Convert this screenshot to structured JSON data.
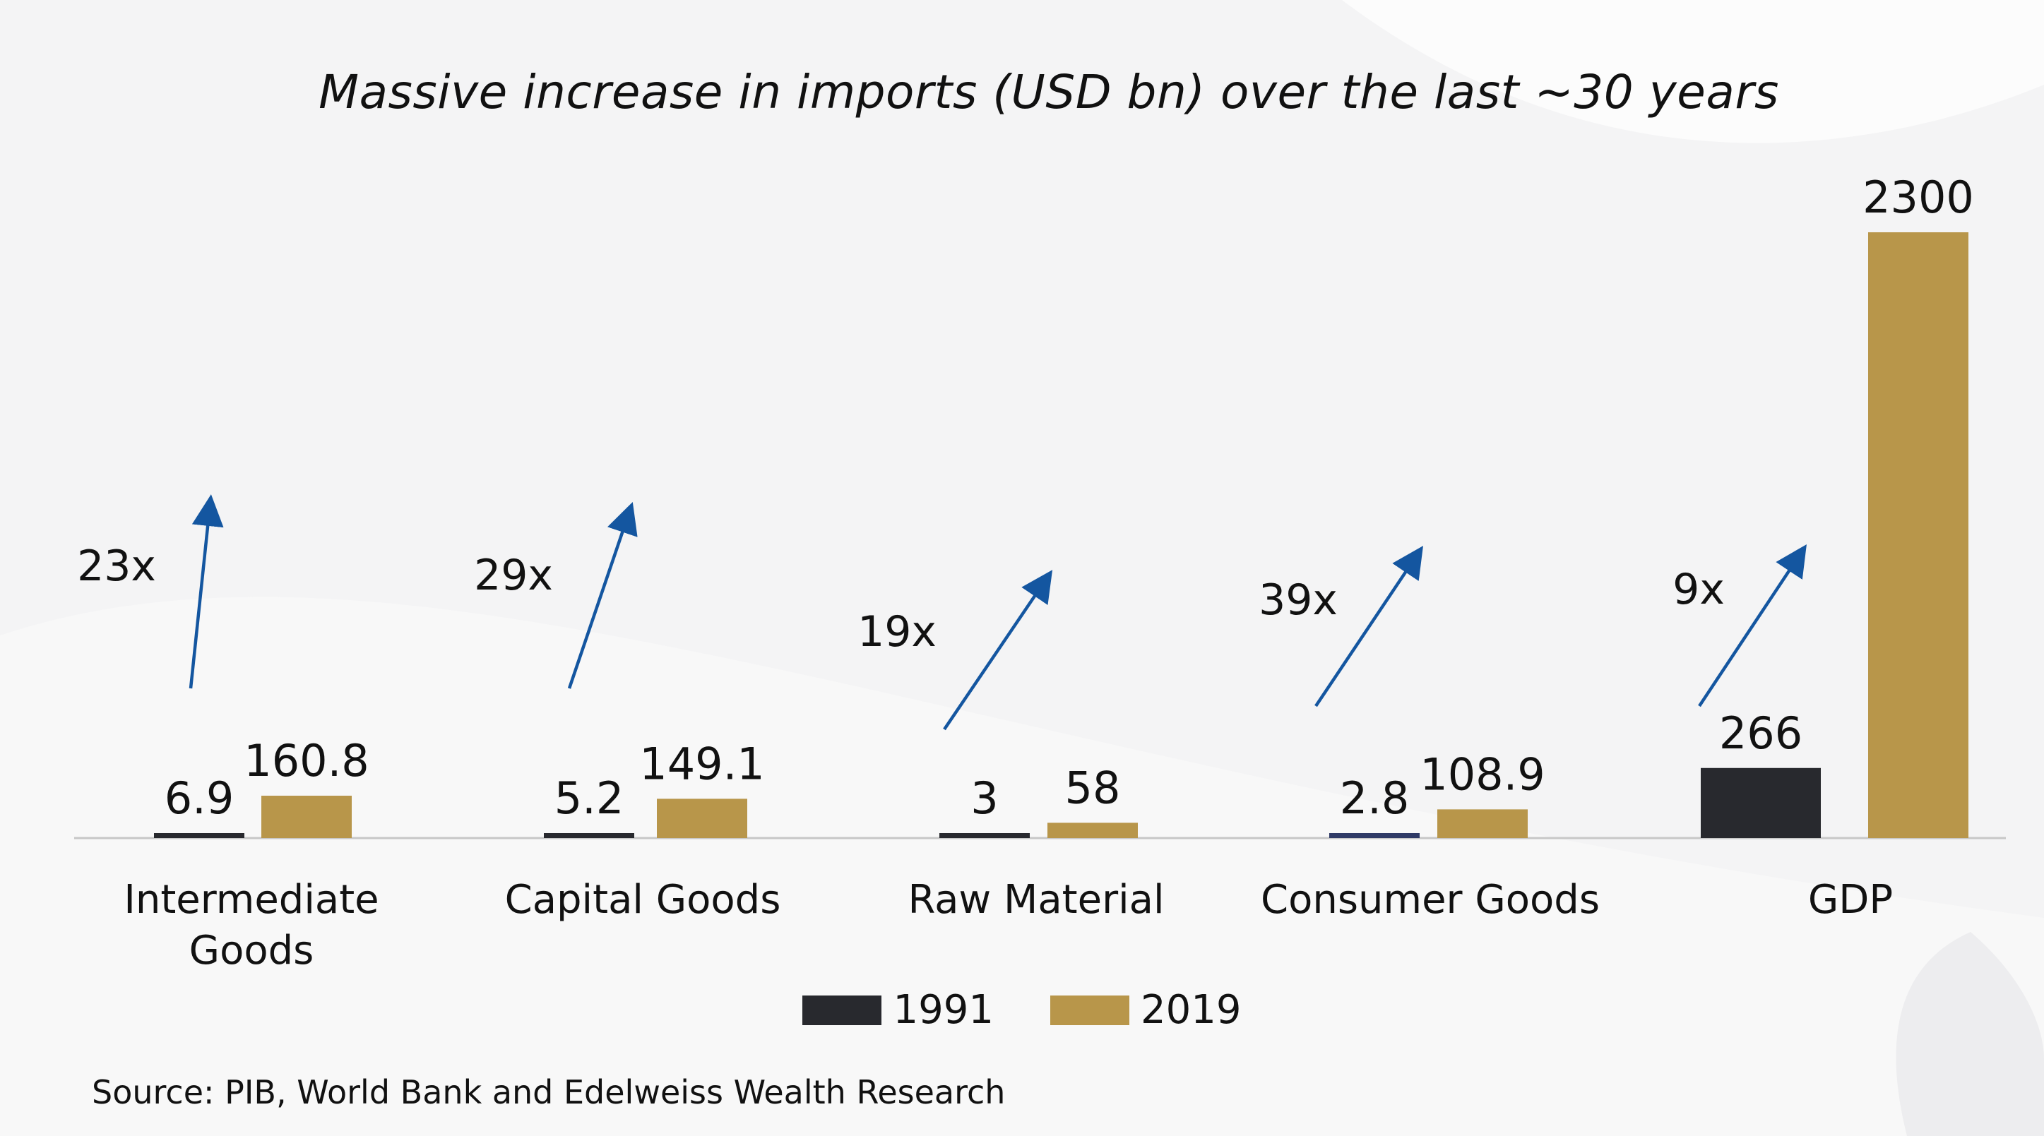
{
  "chart_data": {
    "type": "bar",
    "title": "Massive increase in imports (USD bn) over the last ~30 years",
    "categories": [
      [
        "Intermediate",
        "Goods"
      ],
      [
        "Capital Goods"
      ],
      [
        "Raw Material"
      ],
      [
        "Consumer Goods"
      ],
      [
        "GDP"
      ]
    ],
    "series": [
      {
        "name": "1991",
        "color": "#28292e",
        "values": [
          6.9,
          5.2,
          3,
          2.8,
          266
        ],
        "labels": [
          "6.9",
          "5.2",
          "3",
          "2.8",
          "266"
        ]
      },
      {
        "name": "2019",
        "color": "#b8964a",
        "values": [
          160.8,
          149.1,
          58,
          108.9,
          2300
        ],
        "labels": [
          "160.8",
          "149.1",
          "58",
          "108.9",
          "2300"
        ]
      }
    ],
    "growth_labels": [
      "23x",
      "29x",
      "19x",
      "39x",
      "9x"
    ],
    "arrow_color": "#1456a0",
    "axis_color": "#c7c7c7",
    "legend_position": "bottom",
    "grid": false,
    "source": "Source: PIB, World Bank and Edelweiss Wealth Research"
  }
}
